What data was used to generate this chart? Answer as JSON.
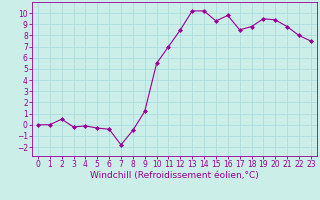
{
  "x": [
    0,
    1,
    2,
    3,
    4,
    5,
    6,
    7,
    8,
    9,
    10,
    11,
    12,
    13,
    14,
    15,
    16,
    17,
    18,
    19,
    20,
    21,
    22,
    23
  ],
  "y": [
    0.0,
    0.0,
    0.5,
    -0.2,
    -0.1,
    -0.3,
    -0.4,
    -1.8,
    -0.5,
    1.2,
    5.5,
    7.0,
    8.5,
    10.2,
    10.2,
    9.3,
    9.8,
    8.5,
    8.8,
    9.5,
    9.4,
    8.8,
    8.0,
    7.5
  ],
  "line_color": "#990099",
  "marker": "D",
  "marker_size": 2,
  "bg_color": "#cceee8",
  "grid_color": "#aadddd",
  "xlabel": "Windchill (Refroidissement éolien,°C)",
  "xlim": [
    -0.5,
    23.5
  ],
  "ylim": [
    -2.8,
    11.0
  ],
  "yticks": [
    -2,
    -1,
    0,
    1,
    2,
    3,
    4,
    5,
    6,
    7,
    8,
    9,
    10
  ],
  "xticks": [
    0,
    1,
    2,
    3,
    4,
    5,
    6,
    7,
    8,
    9,
    10,
    11,
    12,
    13,
    14,
    15,
    16,
    17,
    18,
    19,
    20,
    21,
    22,
    23
  ],
  "label_fontsize": 6.5,
  "tick_fontsize": 5.5
}
